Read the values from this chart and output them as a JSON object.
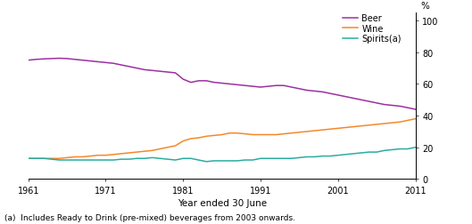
{
  "years": [
    1961,
    1962,
    1963,
    1964,
    1965,
    1966,
    1967,
    1968,
    1969,
    1970,
    1971,
    1972,
    1973,
    1974,
    1975,
    1976,
    1977,
    1978,
    1979,
    1980,
    1981,
    1982,
    1983,
    1984,
    1985,
    1986,
    1987,
    1988,
    1989,
    1990,
    1991,
    1992,
    1993,
    1994,
    1995,
    1996,
    1997,
    1998,
    1999,
    2000,
    2001,
    2002,
    2003,
    2004,
    2005,
    2006,
    2007,
    2008,
    2009,
    2010,
    2011
  ],
  "beer": [
    75,
    75.5,
    75.8,
    76,
    76.2,
    76,
    75.5,
    75,
    74.5,
    74,
    73.5,
    73,
    72,
    71,
    70,
    69,
    68.5,
    68,
    67.5,
    67,
    63,
    61,
    62,
    62,
    61,
    60.5,
    60,
    59.5,
    59,
    58.5,
    58,
    58.5,
    59,
    59,
    58,
    57,
    56,
    55.5,
    55,
    54,
    53,
    52,
    51,
    50,
    49,
    48,
    47,
    46.5,
    46,
    45,
    44
  ],
  "wine": [
    13,
    13,
    13,
    13,
    13,
    13.5,
    14,
    14,
    14.5,
    15,
    15,
    15.5,
    16,
    16.5,
    17,
    17.5,
    18,
    19,
    20,
    21,
    24,
    25.5,
    26,
    27,
    27.5,
    28,
    29,
    29,
    28.5,
    28,
    28,
    28,
    28,
    28.5,
    29,
    29.5,
    30,
    30.5,
    31,
    31.5,
    32,
    32.5,
    33,
    33.5,
    34,
    34.5,
    35,
    35.5,
    36,
    37,
    38
  ],
  "spirits": [
    13,
    13,
    13,
    12.5,
    12,
    12,
    12,
    12,
    12,
    12,
    12,
    12,
    12.5,
    12.5,
    13,
    13,
    13.5,
    13,
    12.5,
    12,
    13,
    13,
    12,
    11,
    11.5,
    11.5,
    11.5,
    11.5,
    12,
    12,
    13,
    13,
    13,
    13,
    13,
    13.5,
    14,
    14,
    14.5,
    14.5,
    15,
    15.5,
    16,
    16.5,
    17,
    17,
    18,
    18.5,
    19,
    19,
    20
  ],
  "beer_color": "#9B30A0",
  "wine_color": "#F5882A",
  "spirits_color": "#2AADA0",
  "xlabel": "Year ended 30 June",
  "footnote": "(a)  Includes Ready to Drink (pre-mixed) beverages from 2003 onwards.",
  "legend_labels": [
    "Beer",
    "Wine",
    "Spirits(a)"
  ],
  "xticks": [
    1961,
    1971,
    1981,
    1991,
    2001,
    2011
  ],
  "yticks": [
    0,
    20,
    40,
    60,
    80,
    100
  ],
  "ylim": [
    0,
    105
  ],
  "xlim": [
    1961,
    2011
  ]
}
